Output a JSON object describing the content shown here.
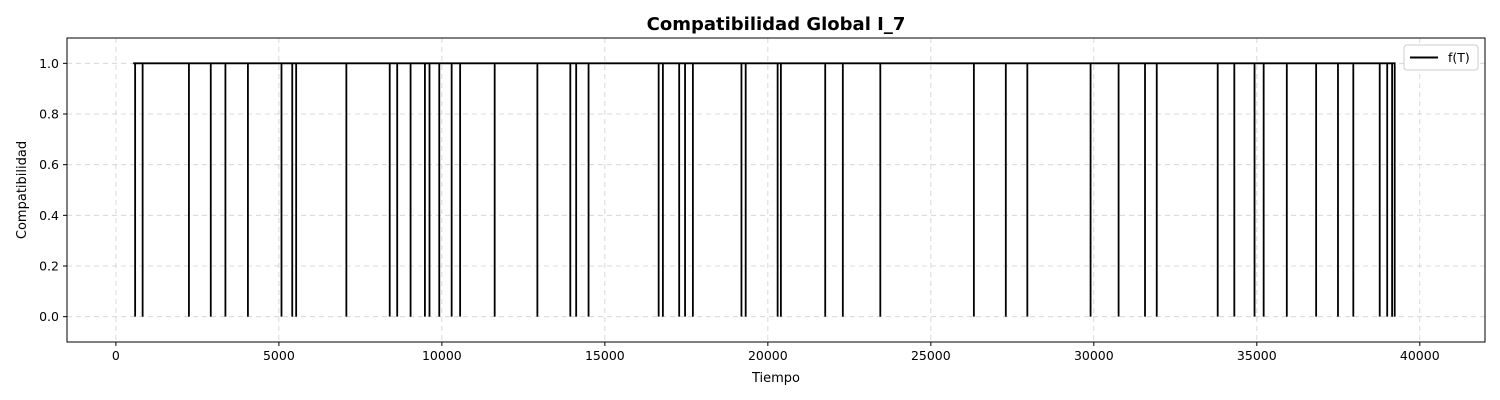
{
  "chart_data": {
    "type": "line",
    "title": "Compatibilidad Global I_7",
    "xlabel": "Tiempo",
    "ylabel": "Compatibilidad",
    "xlim": [
      -1500,
      42000
    ],
    "ylim": [
      -0.1,
      1.1
    ],
    "xticks": [
      0,
      5000,
      10000,
      15000,
      20000,
      25000,
      30000,
      35000,
      40000
    ],
    "yticks": [
      0.0,
      0.2,
      0.4,
      0.6,
      0.8,
      1.0
    ],
    "xtick_labels": [
      "0",
      "5000",
      "10000",
      "15000",
      "20000",
      "25000",
      "30000",
      "35000",
      "40000"
    ],
    "ytick_labels": [
      "0.0",
      "0.2",
      "0.4",
      "0.6",
      "0.8",
      "1.0"
    ],
    "grid": true,
    "legend_position": "top-right",
    "series": [
      {
        "name": "f(T)",
        "color": "#000000",
        "start": 530,
        "end": 39250,
        "base_value": 1.0,
        "drop_value": 0.0,
        "drops_at": [
          590,
          820,
          2240,
          2910,
          3360,
          4050,
          5080,
          5410,
          5530,
          7070,
          8400,
          8630,
          9040,
          9480,
          9620,
          9920,
          10300,
          10560,
          11620,
          12930,
          13940,
          14120,
          14500,
          16650,
          16780,
          17280,
          17460,
          17700,
          19190,
          19320,
          20300,
          20400,
          21760,
          22300,
          23450,
          26320,
          27300,
          27960,
          29900,
          30760,
          31570,
          31930,
          33800,
          34310,
          34930,
          35210,
          35920,
          36820,
          37490,
          37960,
          38770,
          39000,
          39150,
          39230
        ]
      }
    ]
  }
}
